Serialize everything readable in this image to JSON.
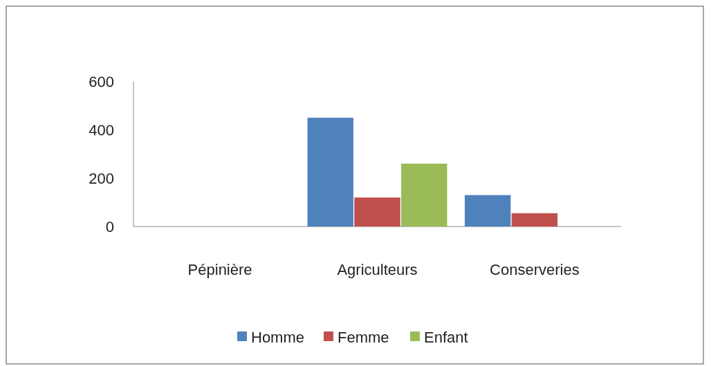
{
  "chart_data": {
    "type": "bar",
    "categories": [
      "Pépinière",
      "Agriculteurs",
      "Conserveries"
    ],
    "series": [
      {
        "name": "Homme",
        "color": "#4f81bd",
        "values": [
          0,
          450,
          130
        ]
      },
      {
        "name": "Femme",
        "color": "#c0504d",
        "values": [
          0,
          120,
          55
        ]
      },
      {
        "name": "Enfant",
        "color": "#9bbb59",
        "values": [
          0,
          260,
          0
        ]
      }
    ],
    "ylim": [
      0,
      600
    ],
    "yticks": [
      0,
      200,
      400,
      600
    ],
    "grid": false,
    "legend": "bottom"
  }
}
